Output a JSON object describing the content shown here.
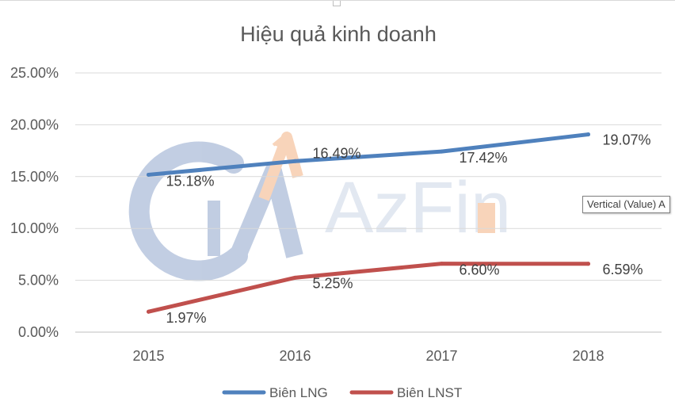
{
  "chart_data": {
    "type": "line",
    "title": "Hiệu quả kinh doanh",
    "categories": [
      "2015",
      "2016",
      "2017",
      "2018"
    ],
    "ylim": [
      0,
      25
    ],
    "yticks": [
      0,
      5,
      10,
      15,
      20,
      25
    ],
    "ytick_labels": [
      "0.00%",
      "5.00%",
      "10.00%",
      "15.00%",
      "20.00%",
      "25.00%"
    ],
    "grid": true,
    "legend_position": "bottom",
    "series": [
      {
        "name": "Biên LNG",
        "color": "#4f81bd",
        "values": [
          15.18,
          16.49,
          17.42,
          19.07
        ],
        "labels": [
          "15.18%",
          "16.49%",
          "17.42%",
          "19.07%"
        ]
      },
      {
        "name": "Biên LNST",
        "color": "#c0504d",
        "values": [
          1.97,
          5.25,
          6.6,
          6.59
        ],
        "labels": [
          "1.97%",
          "5.25%",
          "6.60%",
          "6.59%"
        ]
      }
    ]
  },
  "tooltip_text": "Vertical (Value) A",
  "watermark": {
    "text": "AzFin",
    "accent_color": "#f4b183",
    "color": "#8fa6cc"
  }
}
